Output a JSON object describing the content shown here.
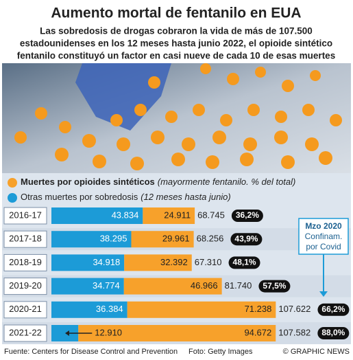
{
  "chart_data": {
    "type": "bar",
    "title": "Aumento mortal de fentanilo en EUA",
    "subtitle": [
      "Las sobredosis de drogas cobraron la vida de más de 107.500",
      "estadounidenses en los 12 meses hasta junio 2022, el opioide sintético",
      "fentanilo constituyó un factor en casi nueve de cada 10 de esas muertes"
    ],
    "categories": [
      "2016-17",
      "2017-18",
      "2018-19",
      "2019-20",
      "2020-21",
      "2021-22"
    ],
    "series": [
      {
        "name": "Otras muertes por sobredosis",
        "note": "(12 meses hasta junio)",
        "color": "#1c9bd7",
        "values": [
          43834,
          38295,
          34918,
          34774,
          36384,
          12910
        ],
        "value_labels": [
          "43.834",
          "38.295",
          "34.918",
          "34.774",
          "36.384",
          "12.910"
        ]
      },
      {
        "name": "Muertes por opioides sintéticos",
        "note": "(mayormente fentanilo. % del total)",
        "color": "#f7a12b",
        "values": [
          24911,
          29961,
          32392,
          46966,
          71238,
          94672
        ],
        "value_labels": [
          "24.911",
          "29.961",
          "32.392",
          "46.966",
          "71.238",
          "94.672"
        ]
      }
    ],
    "totals": {
      "values": [
        68745,
        68256,
        67310,
        81740,
        107622,
        107582
      ],
      "value_labels": [
        "68.745",
        "68.256",
        "67.310",
        "81.740",
        "107.622",
        "107.582"
      ]
    },
    "shares": {
      "values": [
        36.2,
        43.9,
        48.1,
        57.5,
        66.2,
        88.0
      ],
      "value_labels": [
        "36,2%",
        "43,9%",
        "48,1%",
        "57,5%",
        "66,2%",
        "88,0%"
      ]
    },
    "xlim": [
      0,
      120000
    ],
    "annotation": [
      "Mzo 2020",
      "Confinam.",
      "por Covid"
    ],
    "source": "Fuente: Centers for Disease Control and Prevention",
    "photo_credit": "Foto: Getty Images",
    "copyright": "© GRAPHIC NEWS"
  }
}
